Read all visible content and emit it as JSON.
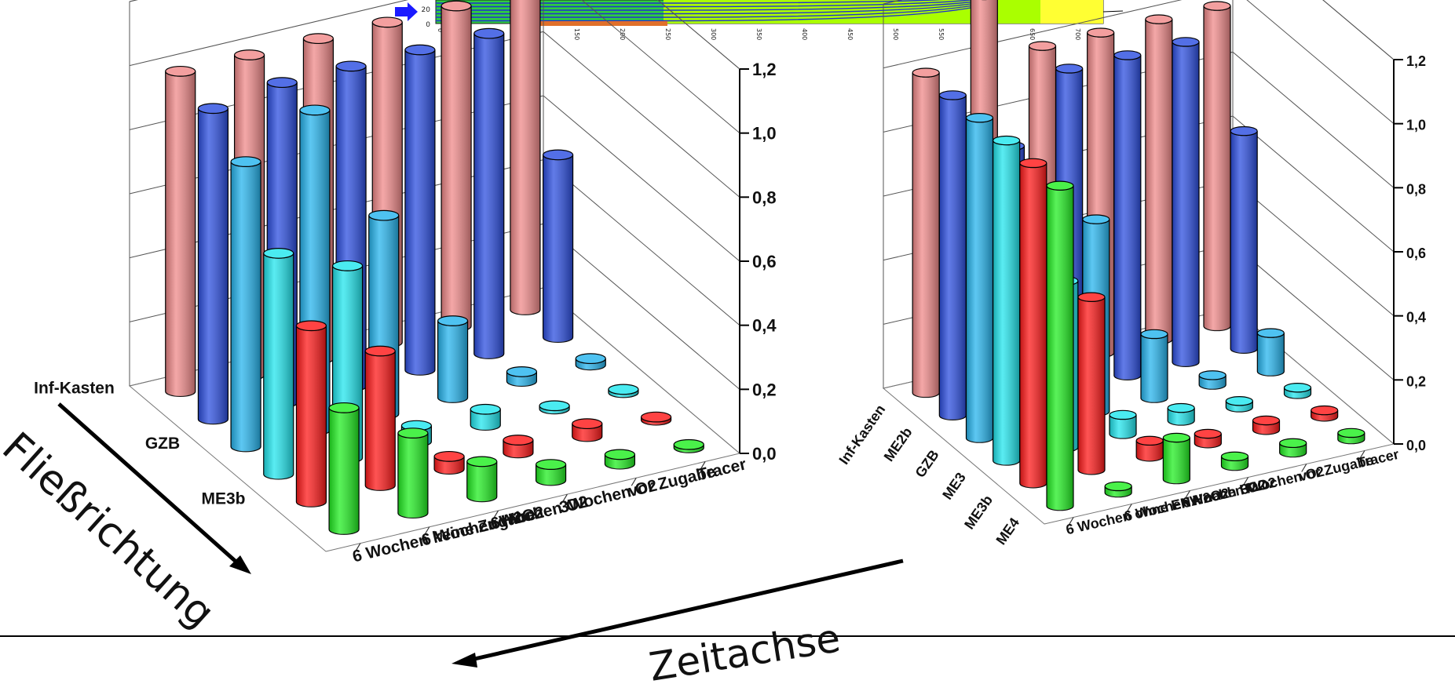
{
  "chart_data": [
    {
      "type": "bar3d",
      "z_ticks": [
        "0,0",
        "0,2",
        "0,4",
        "0,6",
        "0,8",
        "1,0",
        "1,2"
      ],
      "zlim": [
        0,
        1.2
      ],
      "rows": [
        "Tracer",
        "vor Zugabe",
        "3Wochen O2",
        "6Wochen O2",
        "6 Wochen H2O2",
        "6 Wochen keine Zugabe"
      ],
      "cols": [
        "Inf-Kasten",
        "",
        "GZB",
        "",
        "ME3b",
        ""
      ],
      "col_colors": [
        "#f08a8a",
        "#2d4fe0",
        "#27b5ee",
        "#22e6ee",
        "#ff1a1a",
        "#22ee22"
      ],
      "values": [
        [
          1.0,
          0.57,
          0.02,
          0.01,
          0.01,
          0.01
        ],
        [
          1.0,
          1.0,
          0.03,
          0.01,
          0.04,
          0.03
        ],
        [
          1.0,
          1.0,
          0.24,
          0.05,
          0.04,
          0.05
        ],
        [
          1.0,
          1.0,
          0.62,
          0.05,
          0.04,
          0.11
        ],
        [
          1.0,
          1.0,
          1.0,
          0.6,
          0.42,
          0.25
        ],
        [
          1.0,
          0.97,
          0.89,
          0.69,
          0.55,
          0.38
        ]
      ]
    },
    {
      "type": "bar3d",
      "z_ticks": [
        "0,0",
        "0,2",
        "0,4",
        "0,6",
        "0,8",
        "1,0",
        "1,2"
      ],
      "zlim": [
        0,
        1.2
      ],
      "rows": [
        "Tracer",
        "vor Zugabe",
        "3Wochen O2",
        "6Wochen O2",
        "6 Wochen H2O2",
        "6 Wochen ohne ENA nach H2O2"
      ],
      "cols": [
        "Inf-Kasten",
        "ME2b",
        "GZB",
        "ME3",
        "ME3b",
        "ME4"
      ],
      "col_colors": [
        "#f08a8a",
        "#2d4fe0",
        "#27b5ee",
        "#22e6ee",
        "#ff1a1a",
        "#22ee22"
      ],
      "values": [
        [
          1.0,
          0.68,
          0.12,
          0.02,
          0.02,
          0.02
        ],
        [
          1.0,
          1.0,
          0.03,
          0.02,
          0.03,
          0.03
        ],
        [
          1.0,
          1.0,
          0.2,
          0.04,
          0.03,
          0.03
        ],
        [
          1.0,
          1.0,
          0.6,
          0.06,
          0.05,
          0.13
        ],
        [
          1.2,
          0.8,
          0.62,
          0.52,
          0.54,
          0.02
        ],
        [
          1.0,
          1.0,
          1.0,
          1.0,
          1.0,
          1.0
        ]
      ]
    }
  ],
  "annotations": {
    "flow_direction": "Fließrichtung",
    "time_axis": "Zeitachse"
  },
  "inset": {
    "y_ticks": [
      "20",
      "0"
    ],
    "x_ticks": [
      "0",
      "50",
      "100",
      "150",
      "200",
      "250",
      "300",
      "350",
      "400",
      "450",
      "500",
      "550",
      "600",
      "650",
      "700"
    ],
    "colors": {
      "field": "#2ecc40",
      "low": "#aaff00",
      "high": "#ffff33",
      "lines": "#2030d0",
      "bar": "#e0702a",
      "arrow": "#1a1aff"
    }
  }
}
